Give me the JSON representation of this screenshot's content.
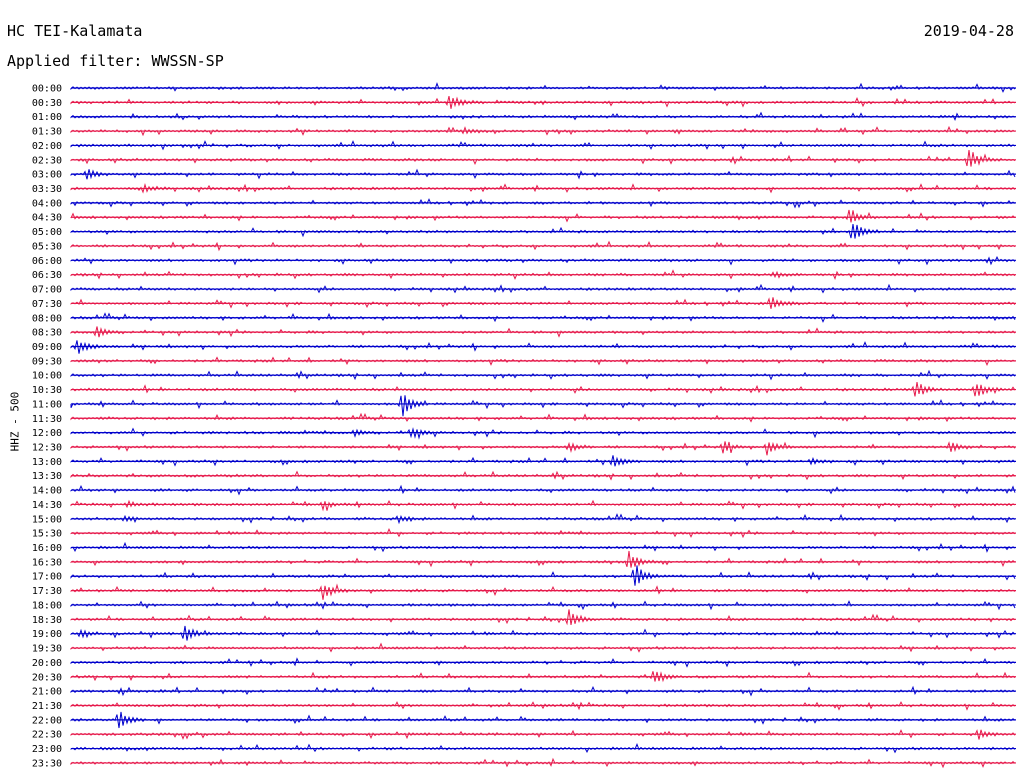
{
  "header": {
    "station": "HC TEI-Kalamata",
    "date": "2019-04-28",
    "filter": "Applied filter: WWSSN-SP"
  },
  "chart_data": {
    "type": "line",
    "title": "HC TEI-Kalamata",
    "ylabel": "HHZ - 500",
    "trace_colors": [
      "#0000cc",
      "#e6194b"
    ],
    "rows": [
      "00:00",
      "00:30",
      "01:00",
      "01:30",
      "02:00",
      "02:30",
      "03:00",
      "03:30",
      "04:00",
      "04:30",
      "05:00",
      "05:30",
      "06:00",
      "06:30",
      "07:00",
      "07:30",
      "08:00",
      "08:30",
      "09:00",
      "09:30",
      "10:00",
      "10:30",
      "11:00",
      "11:30",
      "12:00",
      "12:30",
      "13:00",
      "13:30",
      "14:00",
      "14:30",
      "15:00",
      "15:30",
      "16:00",
      "16:30",
      "17:00",
      "17:30",
      "18:00",
      "18:30",
      "19:00",
      "19:30",
      "20:00",
      "20:30",
      "21:00",
      "21:30",
      "22:00",
      "22:30",
      "23:00",
      "23:30"
    ],
    "events": [
      {
        "row": "00:30",
        "minute": 12.0,
        "amplitude": 9
      },
      {
        "row": "01:30",
        "minute": 12.5,
        "amplitude": 3
      },
      {
        "row": "02:30",
        "minute": 28.5,
        "amplitude": 12
      },
      {
        "row": "03:00",
        "minute": 0.5,
        "amplitude": 5
      },
      {
        "row": "03:30",
        "minute": 2.3,
        "amplitude": 4
      },
      {
        "row": "04:30",
        "minute": 24.7,
        "amplitude": 7
      },
      {
        "row": "05:00",
        "minute": 24.8,
        "amplitude": 10
      },
      {
        "row": "06:30",
        "minute": 22.3,
        "amplitude": 3
      },
      {
        "row": "07:30",
        "minute": 22.2,
        "amplitude": 8
      },
      {
        "row": "08:30",
        "minute": 0.8,
        "amplitude": 6
      },
      {
        "row": "09:00",
        "minute": 0.2,
        "amplitude": 8
      },
      {
        "row": "10:30",
        "minute": 26.8,
        "amplitude": 10
      },
      {
        "row": "10:30",
        "minute": 28.7,
        "amplitude": 9
      },
      {
        "row": "11:00",
        "minute": 10.5,
        "amplitude": 14
      },
      {
        "row": "12:00",
        "minute": 10.8,
        "amplitude": 6
      },
      {
        "row": "12:00",
        "minute": 9.0,
        "amplitude": 3
      },
      {
        "row": "12:30",
        "minute": 15.8,
        "amplitude": 5
      },
      {
        "row": "12:30",
        "minute": 20.7,
        "amplitude": 6
      },
      {
        "row": "12:30",
        "minute": 22.1,
        "amplitude": 8
      },
      {
        "row": "12:30",
        "minute": 27.9,
        "amplitude": 5
      },
      {
        "row": "13:00",
        "minute": 17.2,
        "amplitude": 7
      },
      {
        "row": "13:00",
        "minute": 23.5,
        "amplitude": 3
      },
      {
        "row": "14:30",
        "minute": 8.0,
        "amplitude": 4
      },
      {
        "row": "14:30",
        "minute": 1.8,
        "amplitude": 3
      },
      {
        "row": "15:00",
        "minute": 10.4,
        "amplitude": 4
      },
      {
        "row": "15:00",
        "minute": 1.7,
        "amplitude": 3
      },
      {
        "row": "16:30",
        "minute": 17.7,
        "amplitude": 12
      },
      {
        "row": "17:00",
        "minute": 17.9,
        "amplitude": 14
      },
      {
        "row": "17:30",
        "minute": 8.0,
        "amplitude": 9
      },
      {
        "row": "18:30",
        "minute": 15.8,
        "amplitude": 10
      },
      {
        "row": "19:00",
        "minute": 3.6,
        "amplitude": 9
      },
      {
        "row": "19:00",
        "minute": 0.3,
        "amplitude": 4
      },
      {
        "row": "20:30",
        "minute": 18.5,
        "amplitude": 8
      },
      {
        "row": "22:00",
        "minute": 1.5,
        "amplitude": 10
      },
      {
        "row": "22:30",
        "minute": 28.8,
        "amplitude": 5
      }
    ]
  }
}
